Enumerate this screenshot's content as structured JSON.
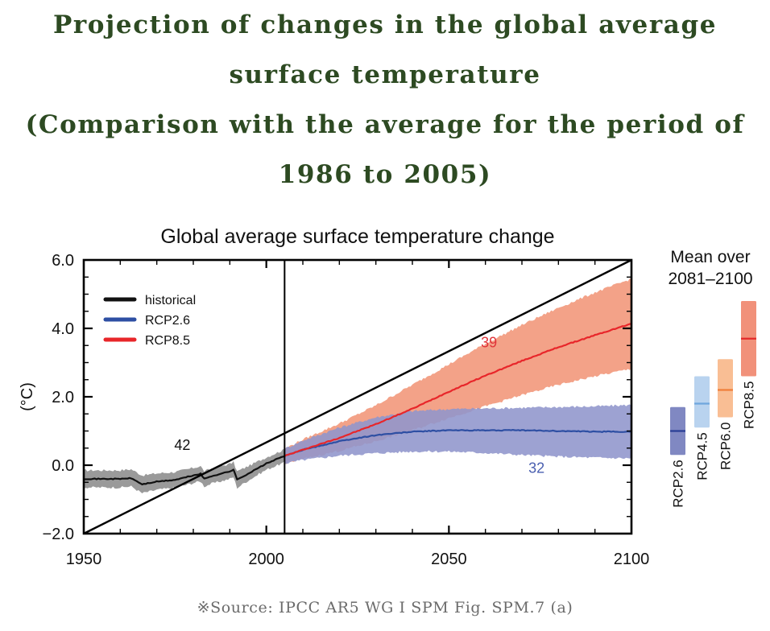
{
  "page": {
    "title_lines": [
      "Projection of changes in the global average",
      "surface temperature",
      "(Comparison with the average for the period of",
      "1986 to 2005)"
    ],
    "source": "※Source: IPCC AR5 WG I SPM Fig. SPM.7 (a)"
  },
  "colors": {
    "title": "#2d4a22",
    "historical": "#111111",
    "historical_band": "#9a9a9a",
    "rcp26": "#2e4fa3",
    "rcp26_band": "#8f95cc",
    "rcp85": "#e8262a",
    "rcp85_band": "#f29a7e",
    "rcp26_label": "#4a5fb0",
    "rcp85_label": "#e0343a"
  },
  "chart_data": {
    "type": "area",
    "title": "Global average surface temperature change",
    "xlabel": "",
    "ylabel": "(°C)",
    "xlim": [
      1950,
      2100
    ],
    "ylim": [
      -2.0,
      6.0
    ],
    "x_ticks": [
      1950,
      2000,
      2050,
      2100
    ],
    "x_tick_labels": [
      "1950",
      "2000",
      "2050",
      "2100"
    ],
    "y_ticks": [
      -2.0,
      0.0,
      2.0,
      4.0,
      6.0
    ],
    "y_tick_labels": [
      "−2.0",
      "0.0",
      "2.0",
      "4.0",
      "6.0"
    ],
    "grid": false,
    "legend_position": "top-left",
    "divider_year": 2005,
    "legend": [
      {
        "name": "historical",
        "color_key": "historical"
      },
      {
        "name": "RCP2.6",
        "color_key": "rcp26"
      },
      {
        "name": "RCP8.5",
        "color_key": "rcp85"
      }
    ],
    "series": [
      {
        "name": "historical",
        "color_key": "historical",
        "band_color_key": "historical_band",
        "model_count_label": "42",
        "label_at": [
          1977,
          0.45
        ],
        "x": [
          1950,
          1955,
          1960,
          1963,
          1966,
          1970,
          1975,
          1980,
          1982,
          1983,
          1985,
          1990,
          1991,
          1992,
          1995,
          2000,
          2005
        ],
        "mean": [
          -0.4,
          -0.4,
          -0.4,
          -0.38,
          -0.56,
          -0.48,
          -0.43,
          -0.3,
          -0.25,
          -0.4,
          -0.32,
          -0.18,
          -0.13,
          -0.42,
          -0.25,
          0.05,
          0.27
        ],
        "lower": [
          -0.65,
          -0.65,
          -0.65,
          -0.62,
          -0.82,
          -0.72,
          -0.66,
          -0.52,
          -0.47,
          -0.62,
          -0.54,
          -0.4,
          -0.35,
          -0.66,
          -0.45,
          -0.13,
          0.08
        ],
        "upper": [
          -0.15,
          -0.15,
          -0.15,
          -0.12,
          -0.3,
          -0.24,
          -0.2,
          -0.08,
          -0.03,
          -0.18,
          -0.1,
          0.04,
          0.09,
          -0.18,
          -0.03,
          0.23,
          0.46
        ]
      },
      {
        "name": "RCP2.6",
        "color_key": "rcp26",
        "band_color_key": "rcp26_band",
        "model_count_label": "32",
        "label_at": [
          2074,
          -0.22
        ],
        "x": [
          2005,
          2010,
          2020,
          2030,
          2040,
          2050,
          2060,
          2070,
          2080,
          2090,
          2100
        ],
        "mean": [
          0.27,
          0.45,
          0.7,
          0.88,
          0.98,
          1.02,
          1.02,
          1.02,
          1.0,
          0.98,
          0.98
        ],
        "lower": [
          0.05,
          0.15,
          0.28,
          0.35,
          0.4,
          0.4,
          0.36,
          0.3,
          0.25,
          0.22,
          0.2
        ],
        "upper": [
          0.48,
          0.72,
          1.1,
          1.4,
          1.58,
          1.64,
          1.66,
          1.68,
          1.7,
          1.72,
          1.76
        ]
      },
      {
        "name": "RCP8.5",
        "color_key": "rcp85",
        "band_color_key": "rcp85_band",
        "model_count_label": "39",
        "label_at": [
          2061,
          3.45
        ],
        "x": [
          2005,
          2010,
          2020,
          2030,
          2040,
          2050,
          2060,
          2070,
          2080,
          2090,
          2100
        ],
        "mean": [
          0.27,
          0.45,
          0.8,
          1.2,
          1.65,
          2.15,
          2.62,
          3.05,
          3.45,
          3.8,
          4.14
        ],
        "lower": [
          0.05,
          0.18,
          0.42,
          0.7,
          1.02,
          1.38,
          1.72,
          2.05,
          2.35,
          2.6,
          2.82
        ],
        "upper": [
          0.48,
          0.75,
          1.22,
          1.75,
          2.35,
          2.95,
          3.55,
          4.1,
          4.6,
          5.05,
          5.45
        ]
      }
    ],
    "reference_line": {
      "description": "diagonal line",
      "from": [
        1950,
        -2.0
      ],
      "to": [
        2100,
        6.0
      ]
    },
    "side_panel": {
      "title_lines": [
        "Mean over",
        "2081–2100"
      ],
      "bars": [
        {
          "name": "RCP2.6",
          "low": 0.3,
          "mean": 1.0,
          "high": 1.7,
          "fill": "#8088c2",
          "mean_color": "#2a3f96"
        },
        {
          "name": "RCP4.5",
          "low": 1.1,
          "mean": 1.8,
          "high": 2.6,
          "fill": "#b9d3ef",
          "mean_color": "#6fa6dd"
        },
        {
          "name": "RCP6.0",
          "low": 1.4,
          "mean": 2.2,
          "high": 3.1,
          "fill": "#f9be94",
          "mean_color": "#f07f3a"
        },
        {
          "name": "RCP8.5",
          "low": 2.6,
          "mean": 3.7,
          "high": 4.8,
          "fill": "#f1917a",
          "mean_color": "#e32a2a"
        }
      ]
    }
  }
}
